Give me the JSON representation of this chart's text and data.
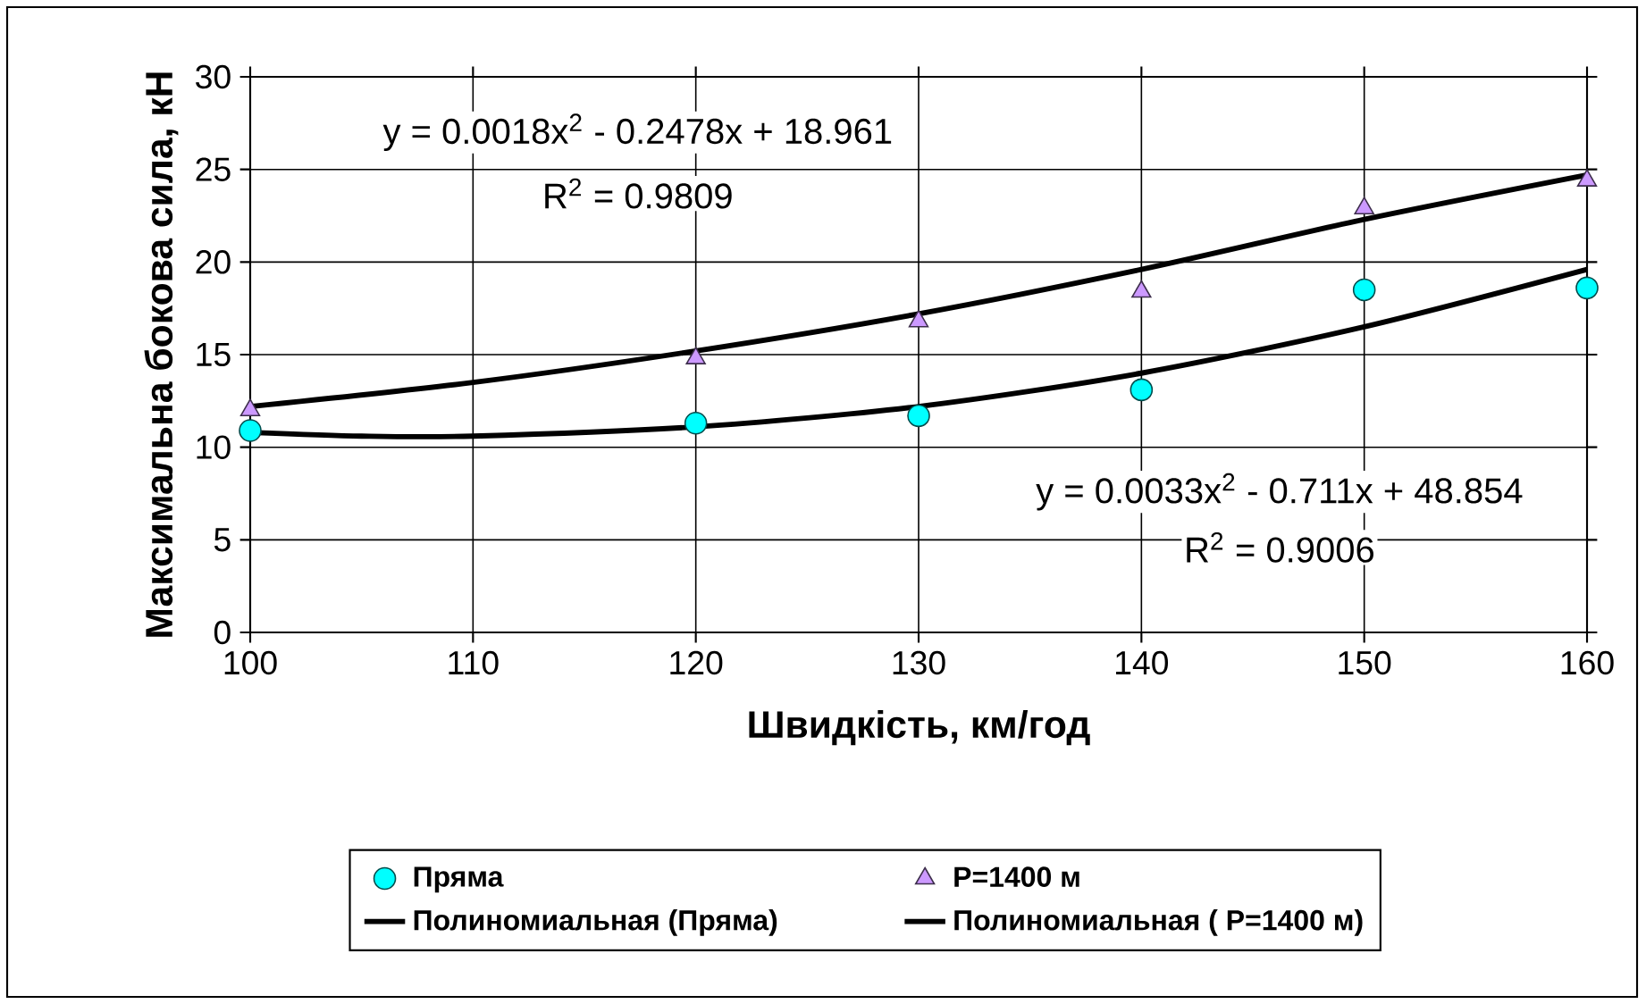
{
  "chart_data": {
    "type": "scatter",
    "xlabel": "Швидкість, км/год",
    "ylabel": "Максимальна бокова сила, кН",
    "xlim": [
      100,
      160
    ],
    "xticks": [
      100,
      110,
      120,
      130,
      140,
      150,
      160
    ],
    "ylim": [
      0,
      30
    ],
    "yticks": [
      0,
      5,
      10,
      15,
      20,
      25,
      30
    ],
    "grid": true,
    "legend": "bottom",
    "series": [
      {
        "name": "Пряма",
        "marker": "circle",
        "color": "#00ffff",
        "x": [
          100,
          120,
          130,
          140,
          150,
          160
        ],
        "values": [
          10.9,
          11.3,
          11.7,
          13.1,
          18.5,
          18.6
        ]
      },
      {
        "name": "P=1400 м",
        "marker": "triangle",
        "color": "#cc99ff",
        "x": [
          100,
          120,
          130,
          140,
          150,
          160
        ],
        "values": [
          12.0,
          14.8,
          16.8,
          18.4,
          22.9,
          24.4
        ]
      },
      {
        "name": "Полиномиальная (Пряма)",
        "type": "line",
        "line_style": "solid",
        "color": "#000000",
        "x": [
          100,
          105,
          110,
          120,
          130,
          140,
          150,
          160
        ],
        "values": [
          10.8,
          10.6,
          10.6,
          11.1,
          12.2,
          14.0,
          16.5,
          19.6
        ]
      },
      {
        "name": "Полиномиальная ( P=1400 м)",
        "type": "line",
        "line_style": "solid",
        "color": "#000000",
        "x": [
          100,
          110,
          120,
          130,
          140,
          150,
          160
        ],
        "values": [
          12.2,
          13.5,
          15.2,
          17.2,
          19.6,
          22.3,
          24.7
        ]
      }
    ],
    "annotations": [
      "y = 0.0018x$^{2}$ - 0.2478x + 18.961",
      "R$^{2}$ = 0.9809",
      "y = 0.0033x$^{2}$ - 0.711x + 48.854",
      "R$^{2}$ = 0.9006"
    ]
  }
}
